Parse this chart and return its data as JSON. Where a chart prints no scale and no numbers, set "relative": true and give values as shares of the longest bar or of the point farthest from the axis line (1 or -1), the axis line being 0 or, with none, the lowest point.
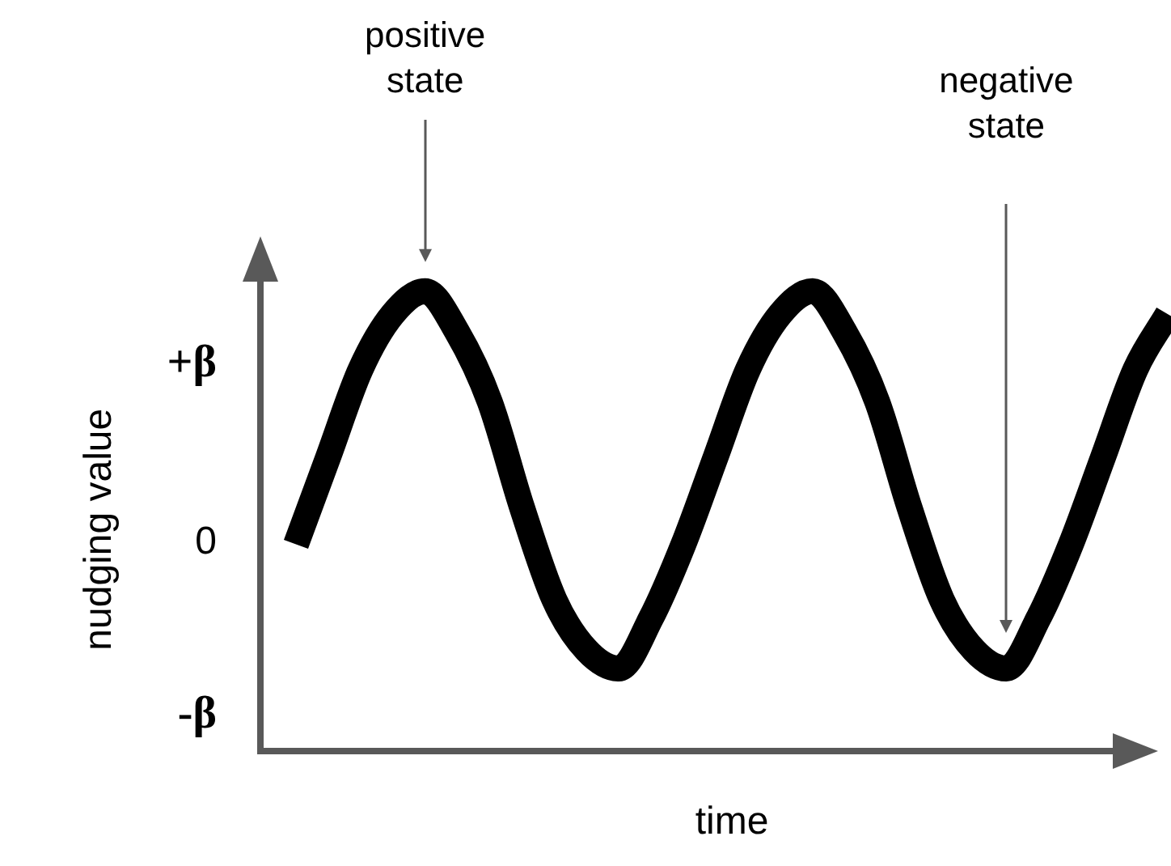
{
  "chart_data": {
    "type": "line",
    "xlabel": "time",
    "ylabel": "nudging value",
    "relative": true,
    "categories": [
      null,
      null,
      null,
      null,
      null,
      null,
      null,
      null,
      null,
      null,
      null,
      null,
      null,
      null,
      null,
      null,
      null,
      null,
      null,
      null,
      null,
      null,
      null,
      null,
      null,
      null,
      null,
      null
    ],
    "series": [
      {
        "color": "#000000",
        "values": [
          0.45,
          0.64,
          0.83,
          0.95,
          1,
          0.91,
          0.76,
          0.53,
          0.33,
          0.22,
          0.18,
          0.29,
          0.45,
          0.64,
          0.83,
          0.95,
          1,
          0.91,
          0.76,
          0.53,
          0.33,
          0.22,
          0.18,
          0.29,
          0.45,
          0.64,
          0.83,
          0.95
        ]
      }
    ],
    "annotations": [
      "+β",
      "0",
      "-β",
      "positive state",
      "negative state"
    ],
    "tick_labels": false,
    "grid": false,
    "legend": false,
    "marker": "none",
    "line_style": "solid"
  }
}
